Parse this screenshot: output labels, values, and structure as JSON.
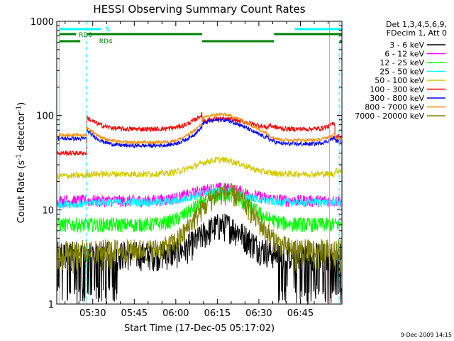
{
  "chart_data": {
    "type": "line",
    "title": "HESSI Observing Summary Count Rates",
    "xlabel": "Start Time (17-Dec-05 05:17:02)",
    "ylabel": "Count Rate (s",
    "ylabel_sup1": "-1",
    "ylabel_mid": " detector",
    "ylabel_sup2": "-1",
    "ylabel_end": ")",
    "yscale": "log",
    "ylim": [
      1,
      1000
    ],
    "xlim_min": [
      0,
      103
    ],
    "y_ticks": [
      "1",
      "10",
      "100",
      "1000"
    ],
    "x_ticks": [
      {
        "label": "05:30",
        "min": 13
      },
      {
        "label": "05:45",
        "min": 28
      },
      {
        "label": "06:00",
        "min": 43
      },
      {
        "label": "06:15",
        "min": 58
      },
      {
        "label": "06:30",
        "min": 73
      },
      {
        "label": "06:45",
        "min": 88
      }
    ],
    "legend_header": [
      "Det 1,3,4,5,6,9,",
      "FDecim 1, Att 0"
    ],
    "series": [
      {
        "name": "3 - 6 keV",
        "color": "#000000"
      },
      {
        "name": "6 - 12 keV",
        "color": "#ff00ff"
      },
      {
        "name": "12 - 25 keV",
        "color": "#00ff00"
      },
      {
        "name": "25 - 50 keV",
        "color": "#00ffff"
      },
      {
        "name": "50 - 100 keV",
        "color": "#d4c800"
      },
      {
        "name": "100 - 300 keV",
        "color": "#ff0000"
      },
      {
        "name": "300 - 800 keV",
        "color": "#0000ff"
      },
      {
        "name": "800 - 7000 keV",
        "color": "#ff8c00"
      },
      {
        "name": "7000 - 20000 keV",
        "color": "#808000"
      }
    ],
    "flags": {
      "n_label": "N",
      "rd0_label": "RD0",
      "rd4_label": "RD4"
    },
    "footer_date": "9-Dec-2009 14:15"
  }
}
